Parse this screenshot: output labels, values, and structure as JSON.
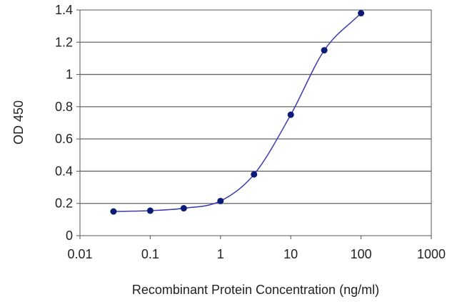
{
  "chart_data": {
    "type": "line",
    "title": "",
    "xlabel": "Recombinant Protein Concentration (ng/ml)",
    "ylabel": "OD 450",
    "x_scale": "log",
    "xlim": [
      0.01,
      1000
    ],
    "ylim": [
      0,
      1.4
    ],
    "x_ticks": [
      "0.01",
      "0.1",
      "1",
      "10",
      "100",
      "1000"
    ],
    "y_ticks": [
      "0",
      "0.2",
      "0.4",
      "0.6",
      "0.8",
      "1",
      "1.2",
      "1.4"
    ],
    "grid": "horizontal",
    "series": [
      {
        "x": [
          0.03,
          0.1,
          0.3,
          1,
          3,
          10,
          30,
          100
        ],
        "y": [
          0.15,
          0.155,
          0.17,
          0.215,
          0.38,
          0.75,
          1.15,
          1.38
        ]
      }
    ],
    "colors": {
      "line": "#3a3ab0",
      "marker": "#0c1a78",
      "grid": "#666666",
      "background": "#ffffff",
      "axis": "#555555"
    }
  }
}
